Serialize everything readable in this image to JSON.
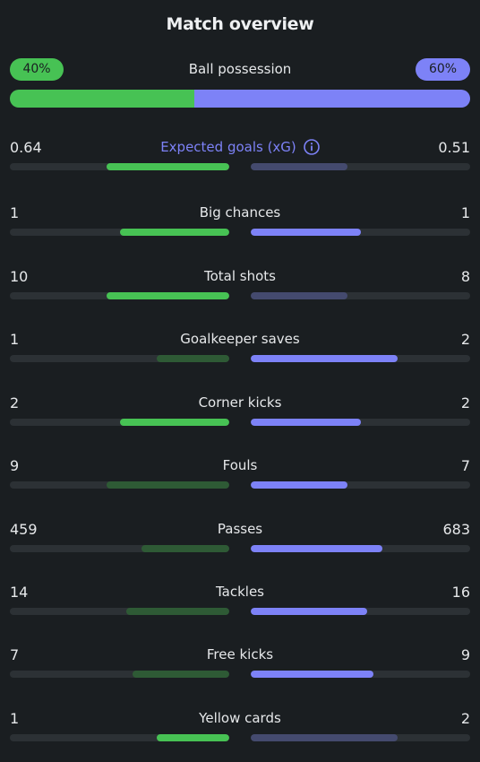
{
  "title": "Match overview",
  "colors": {
    "home": "#47c254",
    "away": "#7d82f7",
    "background": "#1a1e21",
    "track": "#2c3135"
  },
  "possession": {
    "label": "Ball possession",
    "home": "40%",
    "away": "60%",
    "home_fraction": 0.4
  },
  "stats": [
    {
      "label": "Expected goals (xG)",
      "home": "0.64",
      "away": "0.51",
      "home_share": 0.56,
      "away_share": 0.44,
      "leader": "home",
      "info_icon": "info-circle-icon"
    },
    {
      "label": "Big chances",
      "home": "1",
      "away": "1",
      "home_share": 0.5,
      "away_share": 0.5,
      "leader": "both"
    },
    {
      "label": "Total shots",
      "home": "10",
      "away": "8",
      "home_share": 0.56,
      "away_share": 0.44,
      "leader": "home"
    },
    {
      "label": "Goalkeeper saves",
      "home": "1",
      "away": "2",
      "home_share": 0.33,
      "away_share": 0.67,
      "leader": "away"
    },
    {
      "label": "Corner kicks",
      "home": "2",
      "away": "2",
      "home_share": 0.5,
      "away_share": 0.5,
      "leader": "both"
    },
    {
      "label": "Fouls",
      "home": "9",
      "away": "7",
      "home_share": 0.56,
      "away_share": 0.44,
      "leader": "away"
    },
    {
      "label": "Passes",
      "home": "459",
      "away": "683",
      "home_share": 0.4,
      "away_share": 0.6,
      "leader": "away"
    },
    {
      "label": "Tackles",
      "home": "14",
      "away": "16",
      "home_share": 0.47,
      "away_share": 0.53,
      "leader": "away"
    },
    {
      "label": "Free kicks",
      "home": "7",
      "away": "9",
      "home_share": 0.44,
      "away_share": 0.56,
      "leader": "away"
    },
    {
      "label": "Yellow cards",
      "home": "1",
      "away": "2",
      "home_share": 0.33,
      "away_share": 0.67,
      "leader": "home"
    }
  ]
}
